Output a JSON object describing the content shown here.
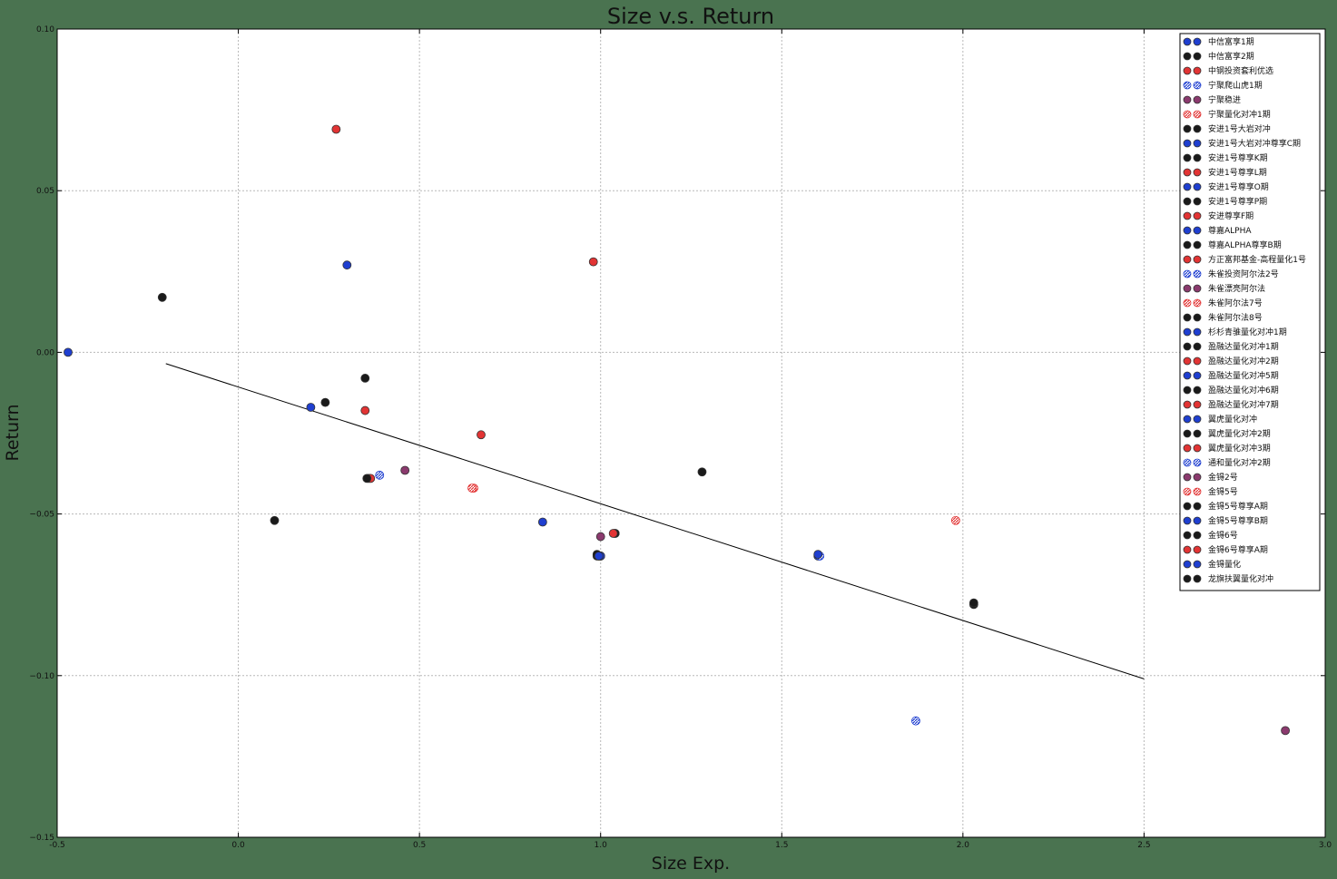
{
  "chart_data": {
    "type": "scatter",
    "title": "Size v.s. Return",
    "xlabel": "Size Exp.",
    "ylabel": "Return",
    "xlim": [
      -0.5,
      3.0
    ],
    "ylim": [
      -0.15,
      0.1
    ],
    "x_ticks": [
      "-0.5",
      "0.0",
      "0.5",
      "1.0",
      "1.5",
      "2.0",
      "2.5",
      "3.0"
    ],
    "y_ticks": [
      "0.10",
      "0.05",
      "0.00",
      "−0.05",
      "−0.10",
      "−0.15"
    ],
    "grid": true,
    "legend_position": "top-right",
    "colors": {
      "blue": "#1f3fd0",
      "black": "#1a1a1a",
      "red": "#e23434",
      "purple": "#8b3a6e",
      "trend": "#000000"
    },
    "trend_line": {
      "x": [
        -0.2,
        2.5
      ],
      "y": [
        -0.0035,
        -0.101
      ]
    },
    "series": [
      {
        "name": "中信富享1期",
        "color": "blue",
        "style": "solid",
        "x": [
          -0.47
        ],
        "y": [
          0.0
        ]
      },
      {
        "name": "中信富享2期",
        "color": "black",
        "style": "solid",
        "x": [
          -0.21
        ],
        "y": [
          0.017
        ]
      },
      {
        "name": "中钢投资套利优选",
        "color": "red",
        "style": "solid",
        "x": [
          0.27
        ],
        "y": [
          0.069
        ]
      },
      {
        "name": "宁聚爬山虎1期",
        "color": "blue",
        "style": "hatched",
        "x": [
          0.39
        ],
        "y": [
          -0.038
        ]
      },
      {
        "name": "宁聚稳进",
        "color": "purple",
        "style": "solid",
        "x": [
          0.46
        ],
        "y": [
          -0.0365
        ]
      },
      {
        "name": "宁聚量化对冲1期",
        "color": "red",
        "style": "hatched",
        "x": [
          0.65
        ],
        "y": [
          -0.042
        ]
      },
      {
        "name": "安进1号大岩对冲",
        "color": "black",
        "style": "solid",
        "x": [
          0.35
        ],
        "y": [
          -0.008
        ]
      },
      {
        "name": "安进1号大岩对冲尊享C期",
        "color": "blue",
        "style": "solid",
        "x": [
          0.3
        ],
        "y": [
          0.027
        ]
      },
      {
        "name": "安进1号尊享K期",
        "color": "black",
        "style": "solid",
        "x": [
          0.24
        ],
        "y": [
          -0.0155
        ]
      },
      {
        "name": "安进1号尊享L期",
        "color": "red",
        "style": "solid",
        "x": [
          0.35
        ],
        "y": [
          -0.018
        ]
      },
      {
        "name": "安进1号尊享O期",
        "color": "blue",
        "style": "solid",
        "x": [
          0.2
        ],
        "y": [
          -0.017
        ]
      },
      {
        "name": "安进1号尊享P期",
        "color": "black",
        "style": "solid",
        "x": [
          1.28
        ],
        "y": [
          -0.037
        ]
      },
      {
        "name": "安进尊享F期",
        "color": "red",
        "style": "solid",
        "x": [
          0.98
        ],
        "y": [
          0.028
        ]
      },
      {
        "name": "尊嘉ALPHA",
        "color": "blue",
        "style": "solid",
        "x": [
          0.84
        ],
        "y": [
          -0.0525
        ]
      },
      {
        "name": "尊嘉ALPHA尊享B期",
        "color": "black",
        "style": "solid",
        "x": [
          0.1
        ],
        "y": [
          -0.052
        ]
      },
      {
        "name": "方正富邦基金-高程量化1号",
        "color": "red",
        "style": "solid",
        "x": [
          0.36
        ],
        "y": [
          -0.039
        ]
      },
      {
        "name": "朱雀投资阿尔法2号",
        "color": "blue",
        "style": "hatched",
        "x": [
          1.87
        ],
        "y": [
          -0.114
        ]
      },
      {
        "name": "朱雀漂亮阿尔法",
        "color": "purple",
        "style": "solid",
        "x": [
          2.89
        ],
        "y": [
          -0.117
        ]
      },
      {
        "name": "朱雀阿尔法7号",
        "color": "red",
        "style": "hatched",
        "x": [
          1.98
        ],
        "y": [
          -0.052
        ]
      },
      {
        "name": "朱雀阿尔法8号",
        "color": "black",
        "style": "solid",
        "x": [
          2.03
        ],
        "y": [
          -0.078
        ]
      },
      {
        "name": "杉杉青骓量化对冲1期",
        "color": "blue",
        "style": "solid",
        "x": [
          1.0
        ],
        "y": [
          -0.063
        ]
      },
      {
        "name": "盈融达量化对冲1期",
        "color": "black",
        "style": "solid",
        "x": [
          0.99
        ],
        "y": [
          -0.063
        ]
      },
      {
        "name": "盈融达量化对冲2期",
        "color": "red",
        "style": "solid",
        "x": [
          1.04
        ],
        "y": [
          -0.056
        ]
      },
      {
        "name": "盈融达量化对冲5期",
        "color": "blue",
        "style": "solid",
        "x": [
          1.6
        ],
        "y": [
          -0.063
        ]
      },
      {
        "name": "盈融达量化对冲6期",
        "color": "black",
        "style": "solid",
        "x": [
          1.04
        ],
        "y": [
          -0.056
        ]
      },
      {
        "name": "盈融达量化对冲7期",
        "color": "red",
        "style": "solid",
        "x": [
          0.365
        ],
        "y": [
          -0.039
        ]
      },
      {
        "name": "翼虎量化对冲",
        "color": "blue",
        "style": "solid",
        "x": [
          1.0
        ],
        "y": [
          -0.063
        ]
      },
      {
        "name": "翼虎量化对冲2期",
        "color": "black",
        "style": "solid",
        "x": [
          0.995
        ],
        "y": [
          -0.063
        ]
      },
      {
        "name": "翼虎量化对冲3期",
        "color": "red",
        "style": "solid",
        "x": [
          1.035
        ],
        "y": [
          -0.056
        ]
      },
      {
        "name": "通和量化对冲2期",
        "color": "blue",
        "style": "hatched",
        "x": [
          1.605
        ],
        "y": [
          -0.063
        ]
      },
      {
        "name": "金锝2号",
        "color": "purple",
        "style": "solid",
        "x": [
          1.0
        ],
        "y": [
          -0.057
        ]
      },
      {
        "name": "金锝5号",
        "color": "red",
        "style": "hatched",
        "x": [
          0.645
        ],
        "y": [
          -0.042
        ]
      },
      {
        "name": "金锝5号尊享A期",
        "color": "black",
        "style": "solid",
        "x": [
          0.99
        ],
        "y": [
          -0.0625
        ]
      },
      {
        "name": "金锝5号尊享B期",
        "color": "blue",
        "style": "solid",
        "x": [
          1.6
        ],
        "y": [
          -0.0625
        ]
      },
      {
        "name": "金锝6号",
        "color": "black",
        "style": "solid",
        "x": [
          0.355
        ],
        "y": [
          -0.039
        ]
      },
      {
        "name": "金锝6号尊享A期",
        "color": "red",
        "style": "solid",
        "x": [
          0.67
        ],
        "y": [
          -0.0255
        ]
      },
      {
        "name": "金锝量化",
        "color": "blue",
        "style": "solid",
        "x": [
          0.995
        ],
        "y": [
          -0.063
        ]
      },
      {
        "name": "龙旗扶翼量化对冲",
        "color": "black",
        "style": "solid",
        "x": [
          2.03
        ],
        "y": [
          -0.0775
        ]
      }
    ]
  }
}
